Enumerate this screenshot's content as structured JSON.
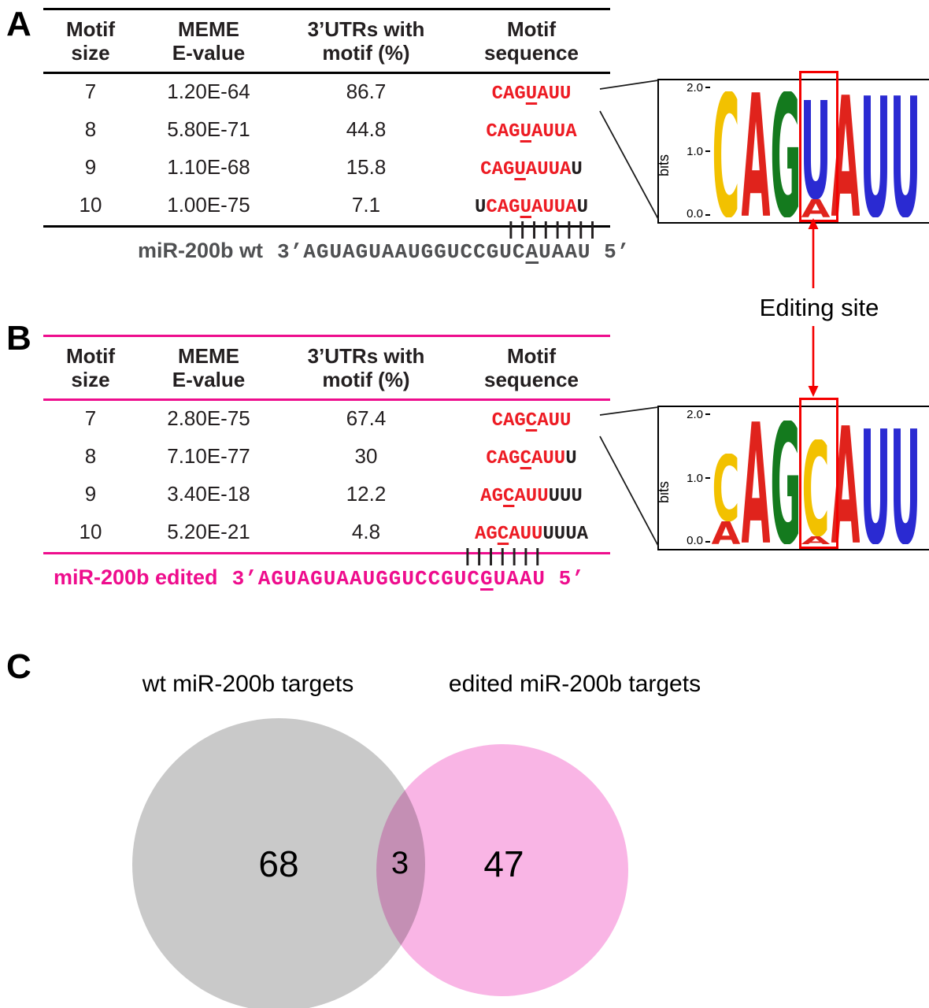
{
  "panelA": {
    "label": "A",
    "table": {
      "headers": [
        "Motif\nsize",
        "MEME\nE-value",
        "3’UTRs with\nmotif (%)",
        "Motif\nsequence"
      ],
      "rows": [
        {
          "size": "7",
          "evalue": "1.20E-64",
          "utr_pct": "86.7",
          "motif": {
            "black_pre": "",
            "red_pre": "CAG",
            "underlined": "U",
            "red_post": "AUU",
            "black_post": ""
          }
        },
        {
          "size": "8",
          "evalue": "5.80E-71",
          "utr_pct": "44.8",
          "motif": {
            "black_pre": "",
            "red_pre": "CAG",
            "underlined": "U",
            "red_post": "AUUA",
            "black_post": ""
          }
        },
        {
          "size": "9",
          "evalue": "1.10E-68",
          "utr_pct": "15.8",
          "motif": {
            "black_pre": "",
            "red_pre": "CAG",
            "underlined": "U",
            "red_post": "AUUA",
            "black_post": "U"
          }
        },
        {
          "size": "10",
          "evalue": "1.00E-75",
          "utr_pct": "7.1",
          "motif": {
            "black_pre": "U",
            "red_pre": "CAG",
            "underlined": "U",
            "red_post": "AUUA",
            "black_post": "U"
          }
        }
      ]
    },
    "pairing_ticks": "||||||||",
    "mirna": {
      "name": "miR-200b wt",
      "seq_pre": "3’AGUAGUAAUGGUCCGUC",
      "seq_underlined": "A",
      "seq_post": "UAAU 5’"
    }
  },
  "panelB": {
    "label": "B",
    "table": {
      "headers": [
        "Motif\nsize",
        "MEME\nE-value",
        "3’UTRs with\nmotif (%)",
        "Motif\nsequence"
      ],
      "rows": [
        {
          "size": "7",
          "evalue": "2.80E-75",
          "utr_pct": "67.4",
          "motif": {
            "black_pre": "",
            "red_pre": "CAG",
            "underlined": "C",
            "red_post": "AUU",
            "black_post": ""
          }
        },
        {
          "size": "8",
          "evalue": "7.10E-77",
          "utr_pct": "30",
          "motif": {
            "black_pre": "",
            "red_pre": "CAG",
            "underlined": "C",
            "red_post": "AUU",
            "black_post": "U"
          }
        },
        {
          "size": "9",
          "evalue": "3.40E-18",
          "utr_pct": "12.2",
          "motif": {
            "black_pre": "",
            "red_pre": "AG",
            "underlined": "C",
            "red_post": "AUU",
            "black_post": "UUU"
          }
        },
        {
          "size": "10",
          "evalue": "5.20E-21",
          "utr_pct": "4.8",
          "motif": {
            "black_pre": "",
            "red_pre": "AG",
            "underlined": "C",
            "red_post": "AUU",
            "black_post": "UUUA"
          }
        }
      ]
    },
    "pairing_ticks": "|||||||",
    "mirna": {
      "name": "miR-200b edited",
      "seq_pre": "3’AGUAGUAAUGGUCCGUC",
      "seq_underlined": "G",
      "seq_post": "UAAU 5’"
    }
  },
  "editing_site_label": "Editing site",
  "logos": {
    "wt": {
      "ylabel": "bits",
      "yticks": [
        "2.0",
        "1.0",
        "0.0"
      ],
      "highlight_index": 3,
      "stacks": [
        [
          {
            "ch": "C",
            "bits": 1.95
          }
        ],
        [
          {
            "ch": "A",
            "bits": 1.95
          }
        ],
        [
          {
            "ch": "G",
            "bits": 1.95
          }
        ],
        [
          {
            "ch": "U",
            "bits": 1.55
          },
          {
            "ch": "A",
            "bits": 0.28
          }
        ],
        [
          {
            "ch": "A",
            "bits": 1.92
          }
        ],
        [
          {
            "ch": "U",
            "bits": 1.9
          }
        ],
        [
          {
            "ch": "U",
            "bits": 1.9
          }
        ]
      ]
    },
    "edited": {
      "ylabel": "bits",
      "yticks": [
        "2.0",
        "1.0",
        "0.0"
      ],
      "highlight_index": 3,
      "stacks": [
        [
          {
            "ch": "C",
            "bits": 1.05
          },
          {
            "ch": "A",
            "bits": 0.35
          }
        ],
        [
          {
            "ch": "A",
            "bits": 1.92
          }
        ],
        [
          {
            "ch": "G",
            "bits": 1.92
          }
        ],
        [
          {
            "ch": "C",
            "bits": 1.5
          },
          {
            "ch": "A",
            "bits": 0.12
          }
        ],
        [
          {
            "ch": "A",
            "bits": 1.85
          }
        ],
        [
          {
            "ch": "U",
            "bits": 1.8
          }
        ],
        [
          {
            "ch": "U",
            "bits": 1.8
          }
        ]
      ]
    },
    "nt_colors": {
      "A": "#e0231c",
      "C": "#f2c100",
      "G": "#147a1e",
      "U": "#2a2ad2"
    }
  },
  "panelC": {
    "label": "C",
    "left_title": "wt miR-200b targets",
    "right_title": "edited miR-200b targets",
    "left_count": "68",
    "overlap_count": "3",
    "right_count": "47",
    "colors": {
      "left": "#c9c9c9",
      "right": "#f9b5e5"
    }
  },
  "colors": {
    "motif_red": "#ed1c24",
    "table_rule_edited": "#ee0d8d",
    "mirna_wt_gray": "#4f5052",
    "highlight_red": "#f40000"
  }
}
